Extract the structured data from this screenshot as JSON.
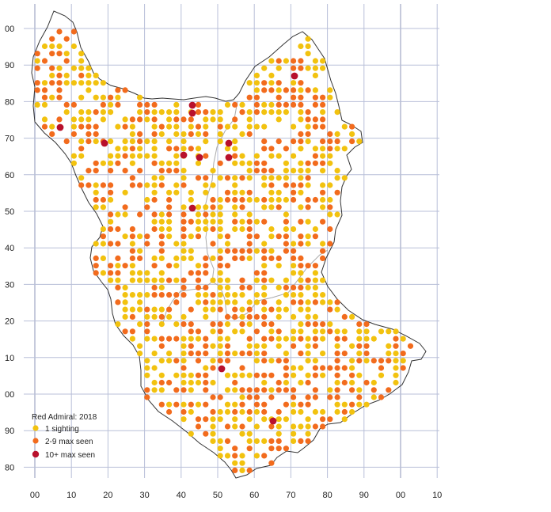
{
  "legend": {
    "title": "Red Admiral:  2018",
    "items": [
      {
        "label": "1 sighting",
        "color": "#f2c20f"
      },
      {
        "label": "2-9 max seen",
        "color": "#f26b1d"
      },
      {
        "label": "10+ max seen",
        "color": "#b8102c"
      }
    ]
  },
  "axes": {
    "x_labels": [
      "00",
      "10",
      "20",
      "30",
      "40",
      "50",
      "60",
      "70",
      "80",
      "90",
      "00",
      "10"
    ],
    "y_labels": [
      "00",
      "90",
      "80",
      "70",
      "60",
      "50",
      "40",
      "30",
      "20",
      "10",
      "00",
      "90",
      "80"
    ]
  },
  "colors": {
    "grid": "#b8bfd8",
    "boundary": "#333333",
    "inner_boundary": "#aaaaaa"
  }
}
